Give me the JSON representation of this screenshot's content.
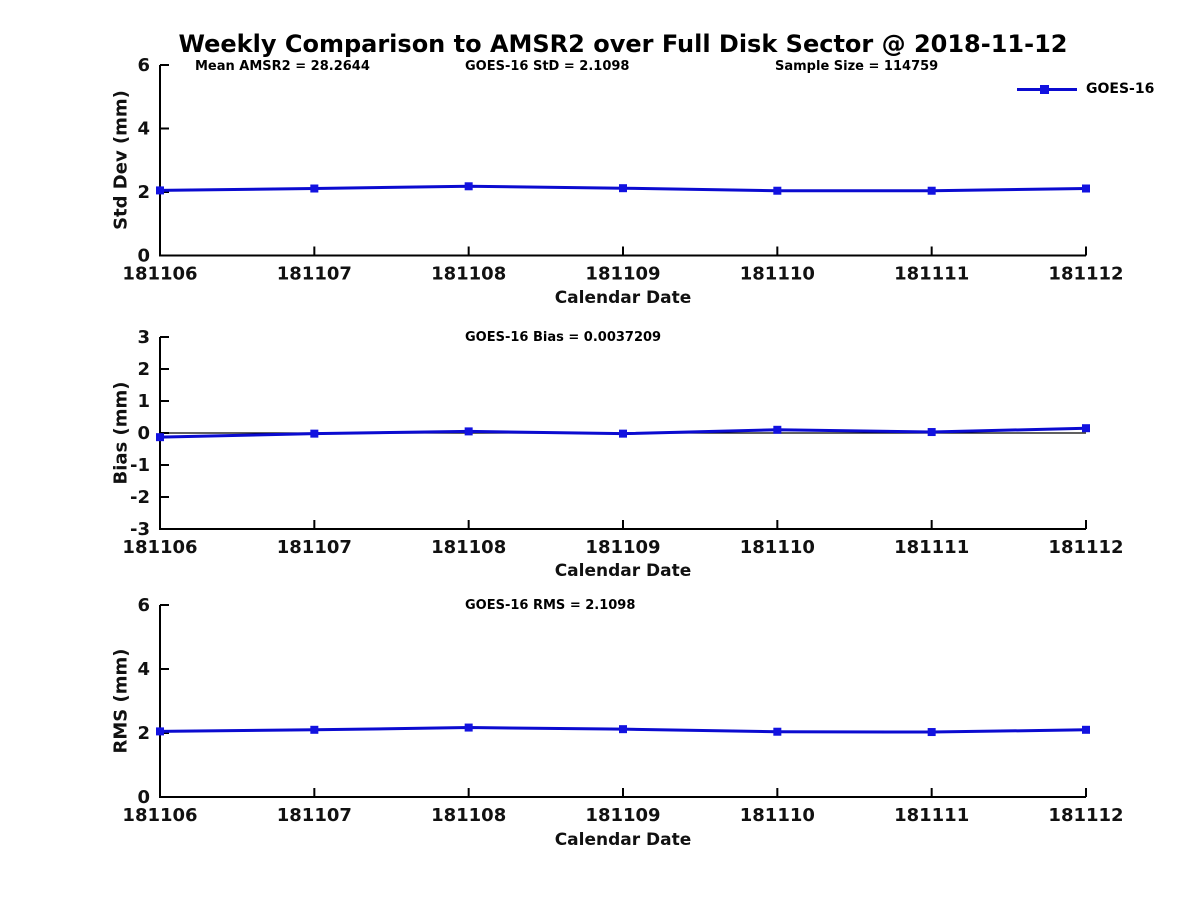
{
  "title": "Weekly Comparison to AMSR2 over Full Disk Sector @ 2018-11-12",
  "legend": {
    "label": "GOES-16",
    "position": "upper right of first subplot"
  },
  "colors": {
    "line": "#0b0bd0",
    "marker": "#1212e0",
    "axis": "#000000",
    "zero_line": "#000000",
    "text": "#000000",
    "background": "#ffffff"
  },
  "chart_data": [
    {
      "type": "line",
      "name": "std-dev-subplot",
      "ylabel": "Std Dev (mm)",
      "xlabel": "Calendar Date",
      "categories": [
        "181106",
        "181107",
        "181108",
        "181109",
        "181110",
        "181111",
        "181112"
      ],
      "series": [
        {
          "name": "GOES-16",
          "values": [
            2.05,
            2.11,
            2.18,
            2.12,
            2.04,
            2.04,
            2.11
          ]
        }
      ],
      "ylim": [
        0,
        6
      ],
      "yticks": [
        0,
        2,
        4,
        6
      ],
      "grid": false,
      "zero_line": false,
      "annotations": [
        "Mean AMSR2 = 28.2644",
        "GOES-16 StD = 2.1098",
        "Sample Size = 114759"
      ]
    },
    {
      "type": "line",
      "name": "bias-subplot",
      "ylabel": "Bias (mm)",
      "xlabel": "Calendar Date",
      "categories": [
        "181106",
        "181107",
        "181108",
        "181109",
        "181110",
        "181111",
        "181112"
      ],
      "series": [
        {
          "name": "GOES-16",
          "values": [
            -0.13,
            -0.02,
            0.05,
            -0.02,
            0.1,
            0.03,
            0.15
          ]
        }
      ],
      "ylim": [
        -3,
        3
      ],
      "yticks": [
        -3,
        -2,
        -1,
        0,
        1,
        2,
        3
      ],
      "grid": false,
      "zero_line": true,
      "annotations": [
        "GOES-16 Bias  = 0.0037209"
      ]
    },
    {
      "type": "line",
      "name": "rms-subplot",
      "ylabel": "RMS (mm)",
      "xlabel": "Calendar Date",
      "categories": [
        "181106",
        "181107",
        "181108",
        "181109",
        "181110",
        "181111",
        "181112"
      ],
      "series": [
        {
          "name": "GOES-16",
          "values": [
            2.05,
            2.1,
            2.17,
            2.12,
            2.04,
            2.03,
            2.1
          ]
        }
      ],
      "ylim": [
        0,
        6
      ],
      "yticks": [
        0,
        2,
        4,
        6
      ],
      "grid": false,
      "zero_line": false,
      "annotations": [
        "GOES-16 RMS = 2.1098"
      ]
    }
  ]
}
